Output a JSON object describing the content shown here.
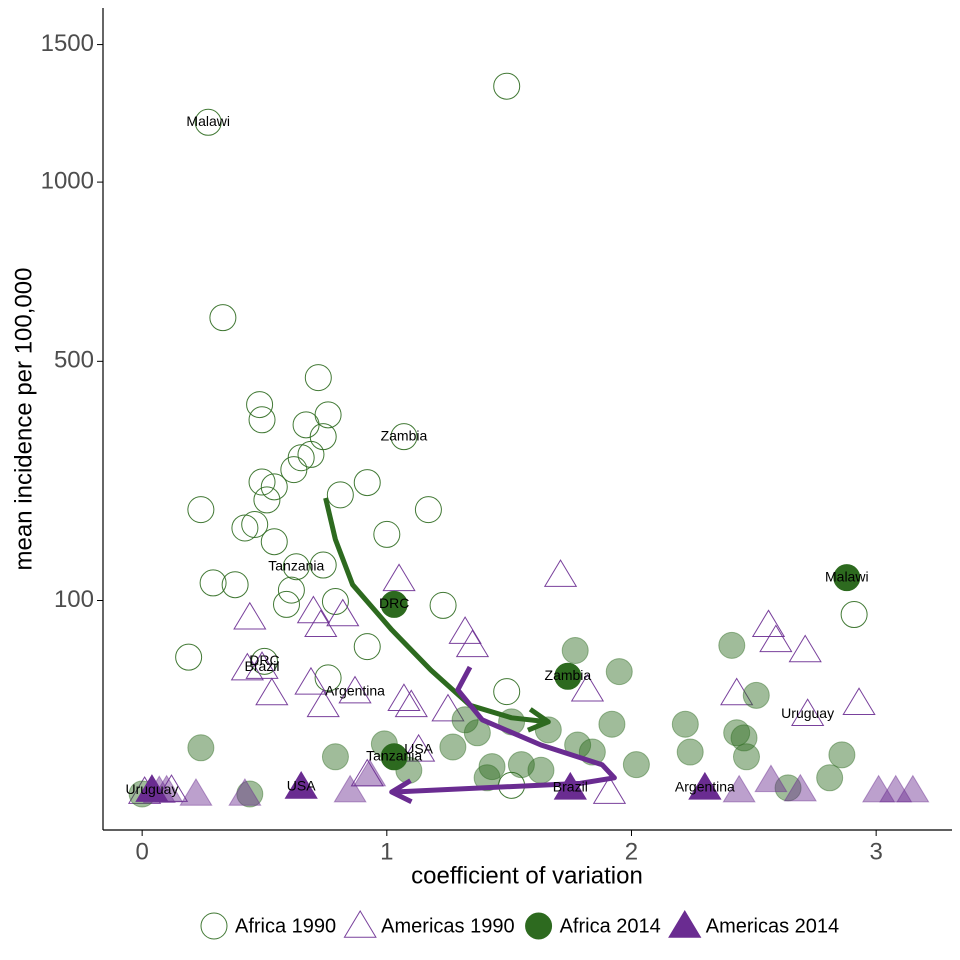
{
  "chart_data": {
    "type": "scatter",
    "x_label": "coefficient of variation",
    "y_label": "mean incidence per 100,000",
    "y_scale": "sqrt",
    "xlim": [
      -0.16,
      3.31
    ],
    "xticks": [
      0,
      1,
      2,
      3
    ],
    "ylim": [
      0,
      1650
    ],
    "yticks": [
      100,
      500,
      1000,
      1500
    ],
    "legend": "bottom",
    "series": [
      {
        "name": "Africa 1990",
        "color": "#2d6a1f",
        "shape": "circle",
        "filled": false,
        "x": [
          0.27,
          1.49,
          0.33,
          0.72,
          0.48,
          0.76,
          0.49,
          0.67,
          0.74,
          1.07,
          0.65,
          0.69,
          0.62,
          0.49,
          0.54,
          0.81,
          0.92,
          0.51,
          0.24,
          1.17,
          0.46,
          0.42,
          1.0,
          0.54,
          0.74,
          0.63,
          0.29,
          0.38,
          0.61,
          0.59,
          0.79,
          1.23,
          0.92,
          0.19,
          0.5,
          0.76,
          1.49,
          2.91,
          1.51
        ],
        "values": [
          1205,
          1338,
          606,
          463,
          405,
          384,
          374,
          364,
          341,
          341,
          302,
          308,
          281,
          260,
          252,
          239,
          259,
          231,
          216,
          216,
          194,
          189,
          180,
          170,
          140,
          138,
          119,
          117,
          111,
          96,
          99,
          95,
          58,
          50,
          47,
          36,
          28,
          86,
          0.2
        ],
        "labels": [
          "Malawi",
          null,
          null,
          null,
          null,
          null,
          null,
          null,
          null,
          "Zambia",
          null,
          null,
          null,
          null,
          null,
          null,
          null,
          null,
          null,
          null,
          null,
          null,
          null,
          null,
          null,
          "Tanzania",
          null,
          null,
          null,
          null,
          null,
          null,
          null,
          null,
          "DRC",
          null,
          null,
          null,
          null
        ]
      },
      {
        "name": "Americas 1990",
        "color": "#6a2c91",
        "shape": "triangle",
        "filled": false,
        "x": [
          0.44,
          1.05,
          1.71,
          0.7,
          0.82,
          0.73,
          1.32,
          1.35,
          2.56,
          2.59,
          2.71,
          0.43,
          0.49,
          0.53,
          0.69,
          0.74,
          0.87,
          1.07,
          1.1,
          1.25,
          1.82,
          2.43,
          2.72,
          2.93,
          1.13,
          0.92,
          1.91,
          0.01,
          0.12
        ],
        "values": [
          83,
          123,
          128,
          89,
          86,
          76,
          70,
          59,
          76,
          63,
          55,
          42,
          43,
          27,
          33,
          21,
          28,
          24,
          21,
          19,
          29,
          27,
          17,
          22,
          5.2,
          1.0,
          0.01,
          0.01,
          0.04
        ],
        "labels": [
          null,
          null,
          null,
          null,
          null,
          null,
          null,
          null,
          null,
          null,
          null,
          null,
          "Brazil",
          null,
          null,
          null,
          "Argentina",
          null,
          null,
          null,
          null,
          null,
          "Uruguay",
          null,
          "USA",
          null,
          null,
          null,
          null
        ]
      },
      {
        "name": "Africa 2014",
        "color": "#2d6a1f",
        "shape": "circle",
        "filled": true,
        "x": [
          2.88,
          1.03,
          1.74,
          1.03,
          1.77,
          1.95,
          2.41,
          2.51,
          2.22,
          1.92,
          2.43,
          2.46,
          2.24,
          2.47,
          2.86,
          2.81,
          2.64,
          0.24,
          0.44,
          0.79,
          0.99,
          1.32,
          1.37,
          1.27,
          1.51,
          1.66,
          1.78,
          1.84,
          1.55,
          1.43,
          1.63,
          2.02,
          1.41,
          1.09,
          0
        ],
        "values": [
          125,
          96,
          37,
          3.7,
          55,
          40,
          59,
          26,
          13,
          13,
          10,
          8.4,
          4.7,
          3.7,
          4.1,
          0.7,
          0.1,
          5.7,
          0,
          3.7,
          6.7,
          14.7,
          10,
          5.9,
          13.9,
          11,
          6.4,
          4.7,
          2.3,
          2.0,
          1.5,
          2.3,
          0.7,
          1.5,
          0
        ],
        "labels": [
          "Malawi",
          "DRC",
          "Zambia",
          "Tanzania",
          null,
          null,
          null,
          null,
          null,
          null,
          null,
          null,
          null,
          null,
          null,
          null,
          null,
          null,
          null,
          null,
          null,
          null,
          null,
          null,
          null,
          null,
          null,
          null,
          null,
          null,
          null,
          null,
          null,
          null,
          null
        ]
      },
      {
        "name": "Americas 2014",
        "color": "#6a2c91",
        "shape": "triangle",
        "filled": true,
        "x": [
          0.04,
          0.22,
          0.65,
          1.75,
          2.3,
          0.07,
          0.85,
          0.93,
          2.44,
          2.57,
          2.69,
          3.01,
          3.15,
          3.08,
          0.1,
          0.42
        ],
        "values": [
          0.04,
          0,
          0.13,
          0.1,
          0.1,
          0.02,
          0.03,
          1.0,
          0.03,
          0.5,
          0.05,
          0.03,
          0.03,
          0.03,
          0.03,
          0
        ],
        "labels": [
          "Uruguay",
          null,
          "USA",
          "Brazil",
          "Argentina",
          null,
          null,
          null,
          null,
          null,
          null,
          null,
          null,
          null,
          null,
          null
        ]
      }
    ],
    "trends": [
      {
        "color": "#2d6a1f",
        "x": [
          0.75,
          0.79,
          0.86,
          1.02,
          1.18,
          1.34,
          1.51,
          1.66
        ],
        "y": [
          234,
          173,
          117,
          72,
          41,
          21,
          15.5,
          13.9
        ]
      },
      {
        "color": "#6a2c91",
        "x": [
          1.34,
          1.29,
          1.39,
          1.63,
          1.88,
          1.93,
          1.79,
          1.02
        ],
        "y": [
          43,
          29,
          14.7,
          6.4,
          2.3,
          0.7,
          0.3,
          0.01
        ]
      }
    ]
  }
}
